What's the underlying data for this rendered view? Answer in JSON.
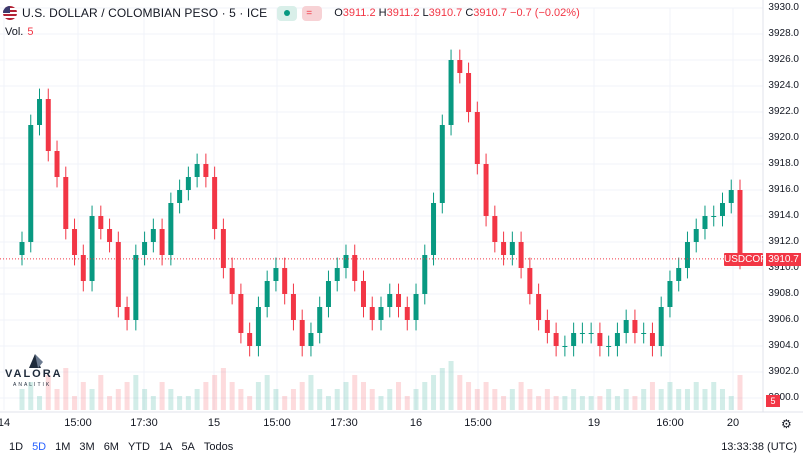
{
  "header": {
    "symbol_title": "U.S. DOLLAR / COLOMBIAN PESO · 5 · ICE",
    "ohlc": {
      "o_label": "O",
      "o": "3911.2",
      "h_label": "H",
      "h": "3911.2",
      "l_label": "L",
      "l": "3910.7",
      "c_label": "C",
      "c": "3910.7",
      "change": "−0.7 (−0.02%)"
    }
  },
  "volume": {
    "label": "Vol.",
    "value": "5"
  },
  "price_axis": {
    "labels": [
      "3930.0",
      "3928.0",
      "3926.0",
      "3924.0",
      "3922.0",
      "3920.0",
      "3918.0",
      "3916.0",
      "3914.0",
      "3912.0",
      "3910.0",
      "3908.0",
      "3906.0",
      "3904.0",
      "3902.0",
      "3900.0"
    ],
    "last_price": "3910.7",
    "symbol_tag": "USDCOP"
  },
  "time_axis": {
    "labels": [
      "14",
      "15:00",
      "17:30",
      "15",
      "15:00",
      "17:30",
      "16",
      "15:00",
      "19",
      "16:00",
      "20"
    ]
  },
  "volume_tag": "5",
  "ranges": [
    "1D",
    "5D",
    "1M",
    "3M",
    "6M",
    "YTD",
    "1A",
    "5A",
    "Todos"
  ],
  "active_range": "5D",
  "clock": "13:33:38 (UTC)",
  "logo": {
    "name": "VALORA",
    "sub": "ANALITIK"
  },
  "colors": {
    "up": "#089981",
    "down": "#f23645",
    "grid": "#f0f3fa",
    "accent": "#2962ff"
  },
  "icons": {
    "settings": "gear-icon",
    "flag": "flag-icon"
  },
  "chart_data": {
    "type": "candlestick",
    "series": [
      {
        "name": "USDCOP",
        "values": [
          3912,
          3921,
          3923,
          3919,
          3917,
          3913,
          3911,
          3909,
          3914,
          3913,
          3912,
          3907,
          3906,
          3911,
          3912,
          3913,
          3911,
          3915,
          3916,
          3917,
          3918,
          3917,
          3913,
          3910,
          3908,
          3905,
          3904,
          3907,
          3909,
          3910,
          3908,
          3906,
          3904,
          3905,
          3907,
          3909,
          3910,
          3911,
          3909,
          3907,
          3906,
          3907,
          3908,
          3907,
          3906,
          3908,
          3911,
          3915,
          3921,
          3926,
          3925,
          3922,
          3918,
          3914,
          3912,
          3911,
          3912,
          3910,
          3908,
          3906,
          3905,
          3904,
          3904,
          3905,
          3905,
          3905,
          3904,
          3904,
          3905,
          3906,
          3905,
          3905,
          3904,
          3907,
          3909,
          3910,
          3912,
          3913,
          3914,
          3914,
          3915,
          3916,
          3910.7
        ]
      }
    ],
    "ylim": [
      3900,
      3930
    ],
    "volume": [
      3,
      4,
      2,
      5,
      3,
      6,
      2,
      4,
      3,
      5,
      2,
      3,
      4,
      5,
      3,
      2,
      4,
      3,
      2,
      2,
      3,
      4,
      5,
      6,
      4,
      3,
      2,
      4,
      5,
      3,
      2,
      3,
      4,
      5,
      3,
      2,
      3,
      4,
      5,
      4,
      3,
      2,
      3,
      4,
      2,
      3,
      4,
      5,
      6,
      7,
      5,
      4,
      3,
      4,
      3,
      2,
      3,
      4,
      3,
      2,
      3,
      2,
      2,
      3,
      2,
      2,
      2,
      3,
      2,
      3,
      2,
      3,
      4,
      3,
      4,
      3,
      3,
      4,
      3,
      4,
      3,
      2,
      5
    ]
  }
}
